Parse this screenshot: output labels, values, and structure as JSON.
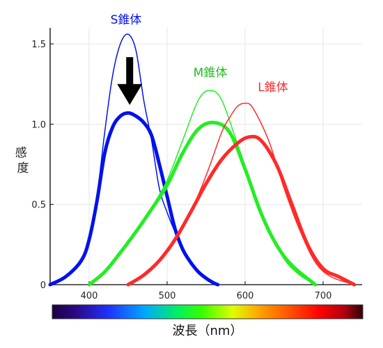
{
  "chart_data": {
    "type": "line",
    "xlabel": "波長（nm）",
    "ylabel": "感度",
    "xlim": [
      350,
      750
    ],
    "ylim": [
      0,
      1.6
    ],
    "x_ticks": [
      "400",
      "500",
      "600",
      "700"
    ],
    "y_ticks": [
      "0",
      "0.5",
      "1.0",
      "1.5"
    ],
    "grid": true,
    "annotations": [
      "S錐体",
      "M錐体",
      "L錐体"
    ],
    "series": [
      {
        "name": "S錐体",
        "color": "#0011ee",
        "style": "thin",
        "x": [
          350,
          370,
          390,
          400,
          410,
          420,
          430,
          440,
          450,
          460,
          470,
          480,
          490,
          500,
          510,
          520,
          530,
          540,
          550,
          560,
          565
        ],
        "y": [
          0.0,
          0.05,
          0.15,
          0.3,
          0.55,
          0.95,
          1.3,
          1.5,
          1.56,
          1.46,
          1.15,
          0.9,
          0.6,
          0.45,
          0.33,
          0.23,
          0.15,
          0.08,
          0.04,
          0.01,
          0.0
        ]
      },
      {
        "name": "S錐体",
        "color": "#0011ee",
        "style": "thick",
        "x": [
          350,
          370,
          390,
          400,
          410,
          420,
          430,
          440,
          450,
          460,
          470,
          480,
          490,
          500,
          510,
          520,
          530,
          540,
          550,
          560,
          565
        ],
        "y": [
          0.0,
          0.05,
          0.15,
          0.28,
          0.52,
          0.82,
          0.98,
          1.05,
          1.07,
          1.05,
          1.01,
          0.93,
          0.75,
          0.55,
          0.35,
          0.22,
          0.14,
          0.08,
          0.04,
          0.01,
          0.0
        ]
      },
      {
        "name": "M錐体",
        "color": "#22ee22",
        "style": "thin",
        "x": [
          400,
          420,
          440,
          460,
          480,
          500,
          520,
          540,
          555,
          570,
          590,
          610,
          630,
          650,
          670,
          690
        ],
        "y": [
          0.0,
          0.08,
          0.2,
          0.33,
          0.48,
          0.65,
          0.9,
          1.15,
          1.21,
          1.15,
          0.88,
          0.6,
          0.35,
          0.16,
          0.06,
          0.0
        ]
      },
      {
        "name": "M錐体",
        "color": "#22ee22",
        "style": "thick",
        "x": [
          400,
          420,
          440,
          460,
          480,
          500,
          520,
          540,
          560,
          580,
          600,
          620,
          640,
          660,
          690
        ],
        "y": [
          0.0,
          0.08,
          0.2,
          0.33,
          0.47,
          0.62,
          0.82,
          0.97,
          1.01,
          0.95,
          0.72,
          0.45,
          0.25,
          0.12,
          0.0
        ]
      },
      {
        "name": "L錐体",
        "color": "#ff2a2a",
        "style": "thin",
        "x": [
          450,
          470,
          490,
          510,
          530,
          550,
          570,
          580,
          590,
          600,
          610,
          630,
          650,
          670,
          690,
          710,
          740
        ],
        "y": [
          0.0,
          0.06,
          0.15,
          0.28,
          0.45,
          0.68,
          0.95,
          1.04,
          1.11,
          1.13,
          1.1,
          0.9,
          0.6,
          0.34,
          0.14,
          0.05,
          0.0
        ]
      },
      {
        "name": "L錐体",
        "color": "#ff2a2a",
        "style": "thick",
        "x": [
          450,
          470,
          490,
          510,
          530,
          550,
          570,
          590,
          605,
          620,
          640,
          660,
          680,
          700,
          720,
          740
        ],
        "y": [
          0.0,
          0.06,
          0.15,
          0.28,
          0.45,
          0.63,
          0.78,
          0.88,
          0.92,
          0.9,
          0.75,
          0.5,
          0.25,
          0.1,
          0.05,
          0.0
        ]
      }
    ],
    "arrow": {
      "x": 452,
      "from_y": 1.4,
      "to_y": 1.12,
      "color": "#000000"
    },
    "colorbar": {
      "wavelength_range": [
        350,
        750
      ]
    }
  }
}
